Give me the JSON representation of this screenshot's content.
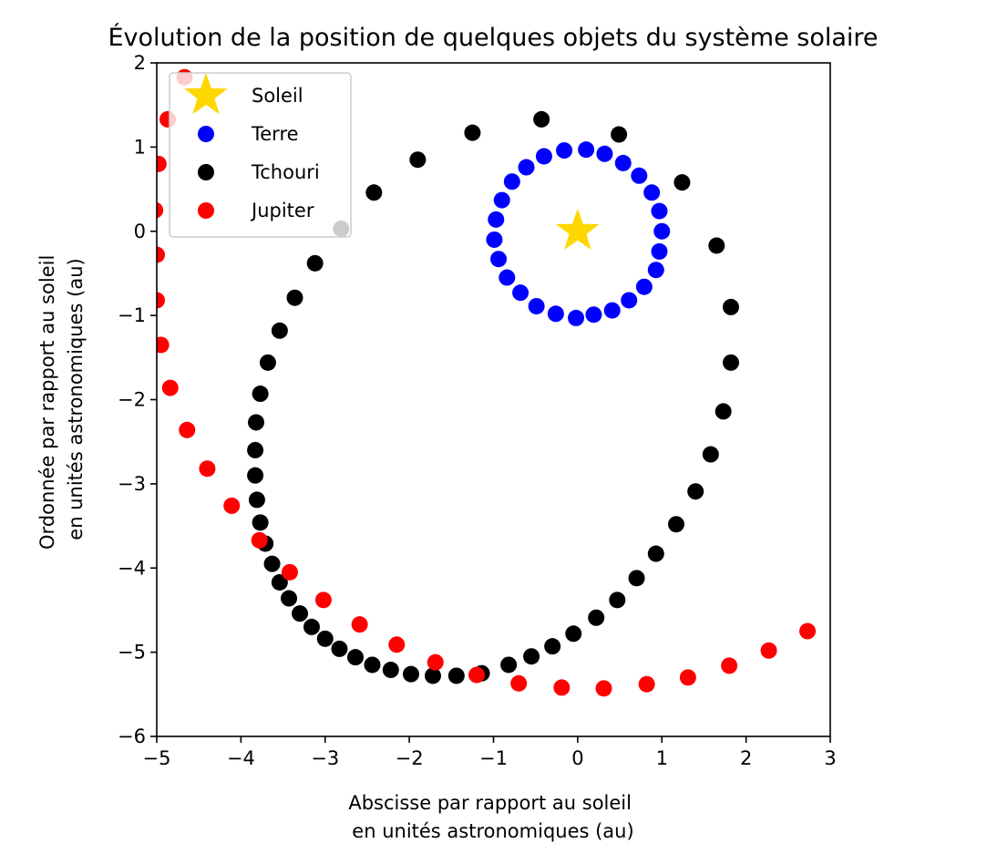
{
  "chart_data": {
    "type": "scatter",
    "title": "Évolution de la position de quelques objets du système solaire",
    "xlabel": [
      "Abscisse par rapport au soleil",
      "en unités astronomiques (au)"
    ],
    "ylabel": [
      "Ordonnée par rapport au soleil",
      "en unités astronomiques (au)"
    ],
    "xlim": [
      -5,
      3
    ],
    "ylim": [
      -6,
      2
    ],
    "xticks": [
      -5,
      -4,
      -3,
      -2,
      -1,
      0,
      1,
      2,
      3
    ],
    "yticks": [
      -6,
      -5,
      -4,
      -3,
      -2,
      -1,
      0,
      1,
      2
    ],
    "xtick_labels": [
      "−5",
      "−4",
      "−3",
      "−2",
      "−1",
      "0",
      "1",
      "2",
      "3"
    ],
    "ytick_labels": [
      "−6",
      "−5",
      "−4",
      "−3",
      "−2",
      "−1",
      "0",
      "1",
      "2"
    ],
    "grid": false,
    "legend_position": "top-left",
    "series": [
      {
        "name": "Soleil",
        "marker": "star",
        "color": "#FFD700",
        "points": [
          [
            0,
            0
          ]
        ]
      },
      {
        "name": "Terre",
        "marker": "circle",
        "color": "#0000FF",
        "points": [
          [
            0.1,
            0.97
          ],
          [
            0.32,
            0.92
          ],
          [
            0.54,
            0.81
          ],
          [
            0.73,
            0.66
          ],
          [
            0.88,
            0.46
          ],
          [
            0.97,
            0.24
          ],
          [
            1.0,
            0.0
          ],
          [
            0.97,
            -0.24
          ],
          [
            0.93,
            -0.46
          ],
          [
            0.79,
            -0.66
          ],
          [
            0.61,
            -0.82
          ],
          [
            0.41,
            -0.94
          ],
          [
            0.19,
            -0.99
          ],
          [
            -0.02,
            -1.03
          ],
          [
            -0.26,
            -0.98
          ],
          [
            -0.49,
            -0.89
          ],
          [
            -0.68,
            -0.73
          ],
          [
            -0.84,
            -0.55
          ],
          [
            -0.94,
            -0.33
          ],
          [
            -0.99,
            -0.1
          ],
          [
            -0.97,
            0.14
          ],
          [
            -0.9,
            0.37
          ],
          [
            -0.78,
            0.59
          ],
          [
            -0.61,
            0.76
          ],
          [
            -0.4,
            0.89
          ],
          [
            -0.16,
            0.96
          ]
        ]
      },
      {
        "name": "Tchouri",
        "marker": "circle",
        "color": "#000000",
        "points": [
          [
            1.24,
            0.58
          ],
          [
            0.49,
            1.15
          ],
          [
            -0.43,
            1.33
          ],
          [
            -1.25,
            1.17
          ],
          [
            -1.9,
            0.85
          ],
          [
            -2.42,
            0.46
          ],
          [
            -2.81,
            0.03
          ],
          [
            -3.12,
            -0.38
          ],
          [
            -3.36,
            -0.79
          ],
          [
            -3.54,
            -1.18
          ],
          [
            -3.68,
            -1.56
          ],
          [
            -3.77,
            -1.93
          ],
          [
            -3.82,
            -2.27
          ],
          [
            -3.83,
            -2.6
          ],
          [
            -3.83,
            -2.9
          ],
          [
            -3.81,
            -3.19
          ],
          [
            -3.77,
            -3.46
          ],
          [
            -3.71,
            -3.71
          ],
          [
            -3.63,
            -3.95
          ],
          [
            -3.54,
            -4.17
          ],
          [
            -3.43,
            -4.36
          ],
          [
            -3.3,
            -4.54
          ],
          [
            -3.16,
            -4.7
          ],
          [
            -3.0,
            -4.84
          ],
          [
            -2.83,
            -4.96
          ],
          [
            -2.64,
            -5.06
          ],
          [
            -2.44,
            -5.15
          ],
          [
            -2.22,
            -5.21
          ],
          [
            -1.98,
            -5.26
          ],
          [
            -1.72,
            -5.28
          ],
          [
            -1.44,
            -5.28
          ],
          [
            -1.14,
            -5.25
          ],
          [
            -0.82,
            -5.15
          ],
          [
            -0.55,
            -5.05
          ],
          [
            -0.3,
            -4.93
          ],
          [
            -0.05,
            -4.78
          ],
          [
            0.22,
            -4.59
          ],
          [
            0.47,
            -4.38
          ],
          [
            0.7,
            -4.12
          ],
          [
            0.93,
            -3.83
          ],
          [
            1.17,
            -3.48
          ],
          [
            1.4,
            -3.09
          ],
          [
            1.58,
            -2.65
          ],
          [
            1.73,
            -2.14
          ],
          [
            1.82,
            -1.56
          ],
          [
            1.82,
            -0.9
          ],
          [
            1.65,
            -0.17
          ]
        ]
      },
      {
        "name": "Jupiter",
        "marker": "circle",
        "color": "#FF0000",
        "points": [
          [
            -4.67,
            1.83
          ],
          [
            -4.87,
            1.33
          ],
          [
            -4.98,
            0.8
          ],
          [
            -5.02,
            0.25
          ],
          [
            -5.0,
            -0.28
          ],
          [
            -5.0,
            -0.82
          ],
          [
            -4.95,
            -1.35
          ],
          [
            -4.84,
            -1.86
          ],
          [
            -4.64,
            -2.36
          ],
          [
            -4.4,
            -2.82
          ],
          [
            -4.11,
            -3.26
          ],
          [
            -3.78,
            -3.67
          ],
          [
            -3.42,
            -4.05
          ],
          [
            -3.02,
            -4.38
          ],
          [
            -2.59,
            -4.67
          ],
          [
            -2.15,
            -4.91
          ],
          [
            -1.69,
            -5.12
          ],
          [
            -1.2,
            -5.27
          ],
          [
            -0.7,
            -5.37
          ],
          [
            -0.19,
            -5.42
          ],
          [
            0.31,
            -5.43
          ],
          [
            0.82,
            -5.38
          ],
          [
            1.31,
            -5.3
          ],
          [
            1.8,
            -5.16
          ],
          [
            2.27,
            -4.98
          ],
          [
            2.73,
            -4.75
          ]
        ]
      }
    ]
  }
}
